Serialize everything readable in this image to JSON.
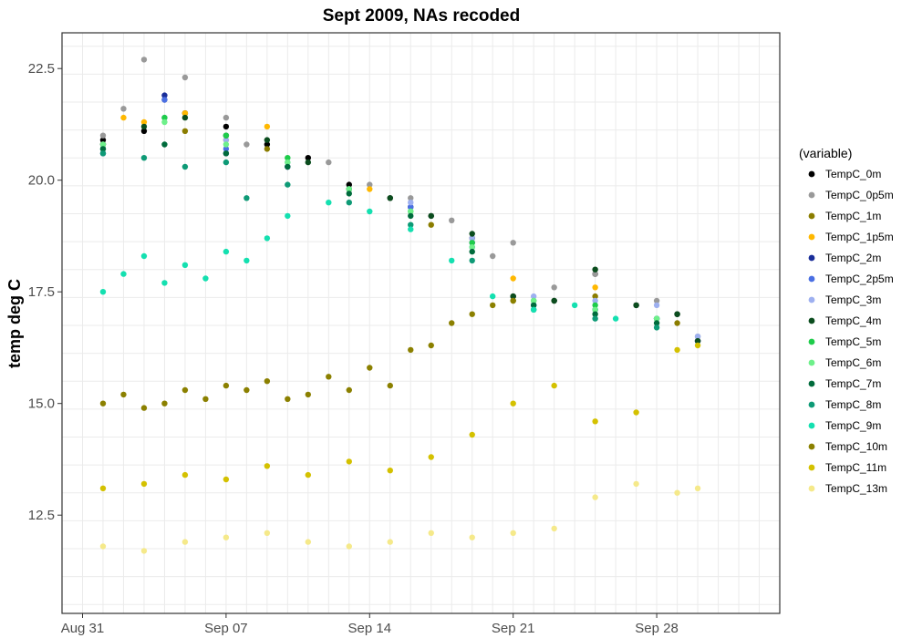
{
  "chart_data": {
    "type": "scatter",
    "title": "Sept 2009, NAs recoded",
    "xlabel": "",
    "ylabel": "temp deg C",
    "x_range": [
      "2009-08-30",
      "2009-10-04"
    ],
    "ylim": [
      10.3,
      23.3
    ],
    "x_ticks": [
      {
        "date": "2009-08-31",
        "label": "Aug 31"
      },
      {
        "date": "2009-09-07",
        "label": "Sep 07"
      },
      {
        "date": "2009-09-14",
        "label": "Sep 14"
      },
      {
        "date": "2009-09-21",
        "label": "Sep 21"
      },
      {
        "date": "2009-09-28",
        "label": "Sep 28"
      }
    ],
    "y_ticks": [
      {
        "value": 12.5,
        "label": "12.5"
      },
      {
        "value": 15.0,
        "label": "15.0"
      },
      {
        "value": 17.5,
        "label": "17.5"
      },
      {
        "value": 20.0,
        "label": "20.0"
      },
      {
        "value": 22.5,
        "label": "22.5"
      }
    ],
    "grid": true,
    "legend": {
      "title": "(variable)",
      "position": "right"
    },
    "series": [
      {
        "name": "TempC_0m",
        "color": "#000000",
        "x": [
          "2009-09-01",
          "2009-09-03",
          "2009-09-05",
          "2009-09-07",
          "2009-09-09",
          "2009-09-11",
          "2009-09-13",
          "2009-09-15",
          "2009-09-17",
          "2009-09-19",
          "2009-09-21",
          "2009-09-23",
          "2009-09-25",
          "2009-09-27",
          "2009-09-29",
          "2009-09-30"
        ],
        "y": [
          20.9,
          21.1,
          21.5,
          21.2,
          20.8,
          20.5,
          19.9,
          19.6,
          19.2,
          18.7,
          17.4,
          17.3,
          17.9,
          17.2,
          17.0,
          16.4
        ]
      },
      {
        "name": "TempC_0p5m",
        "color": "#999999",
        "x": [
          "2009-09-01",
          "2009-09-02",
          "2009-09-03",
          "2009-09-04",
          "2009-09-05",
          "2009-09-07",
          "2009-09-08",
          "2009-09-10",
          "2009-09-12",
          "2009-09-14",
          "2009-09-16",
          "2009-09-18",
          "2009-09-20",
          "2009-09-21",
          "2009-09-23",
          "2009-09-25",
          "2009-09-28",
          "2009-09-30"
        ],
        "y": [
          21.0,
          21.6,
          22.7,
          21.8,
          22.3,
          21.4,
          20.8,
          20.3,
          20.4,
          19.9,
          19.6,
          19.1,
          18.3,
          18.6,
          17.6,
          17.9,
          17.3,
          16.5
        ]
      },
      {
        "name": "TempC_1m",
        "color": "#8B7D00",
        "x": [
          "2009-09-01",
          "2009-09-05",
          "2009-09-09",
          "2009-09-13",
          "2009-09-17",
          "2009-09-21",
          "2009-09-25",
          "2009-09-29"
        ],
        "y": [
          20.8,
          21.1,
          20.7,
          19.8,
          19.0,
          17.3,
          17.4,
          16.8
        ]
      },
      {
        "name": "TempC_1p5m",
        "color": "#FFB800",
        "x": [
          "2009-09-02",
          "2009-09-03",
          "2009-09-05",
          "2009-09-07",
          "2009-09-09",
          "2009-09-14",
          "2009-09-21",
          "2009-09-25"
        ],
        "y": [
          21.4,
          21.3,
          21.5,
          20.9,
          21.2,
          19.8,
          17.8,
          17.6
        ]
      },
      {
        "name": "TempC_2m",
        "color": "#1A2E99",
        "x": [
          "2009-09-01",
          "2009-09-04",
          "2009-09-07",
          "2009-09-10",
          "2009-09-13",
          "2009-09-16",
          "2009-09-19",
          "2009-09-22",
          "2009-09-25",
          "2009-09-28",
          "2009-09-30"
        ],
        "y": [
          20.6,
          21.9,
          20.6,
          20.3,
          19.8,
          19.4,
          18.6,
          17.2,
          17.1,
          16.9,
          16.4
        ]
      },
      {
        "name": "TempC_2p5m",
        "color": "#4A6FE3",
        "x": [
          "2009-09-01",
          "2009-09-04",
          "2009-09-07",
          "2009-09-10",
          "2009-09-13",
          "2009-09-16",
          "2009-09-19",
          "2009-09-22",
          "2009-09-25",
          "2009-09-28",
          "2009-09-30"
        ],
        "y": [
          20.7,
          21.8,
          20.7,
          20.3,
          19.8,
          19.4,
          18.5,
          17.2,
          17.1,
          16.9,
          16.4
        ]
      },
      {
        "name": "TempC_3m",
        "color": "#9EB0F0",
        "x": [
          "2009-09-01",
          "2009-09-04",
          "2009-09-07",
          "2009-09-10",
          "2009-09-13",
          "2009-09-16",
          "2009-09-19",
          "2009-09-22",
          "2009-09-25",
          "2009-09-28",
          "2009-09-30"
        ],
        "y": [
          20.8,
          21.4,
          20.9,
          20.4,
          19.8,
          19.5,
          18.7,
          17.4,
          17.3,
          17.2,
          16.5
        ]
      },
      {
        "name": "TempC_4m",
        "color": "#0B4D1E",
        "x": [
          "2009-09-01",
          "2009-09-03",
          "2009-09-05",
          "2009-09-07",
          "2009-09-09",
          "2009-09-11",
          "2009-09-13",
          "2009-09-15",
          "2009-09-17",
          "2009-09-19",
          "2009-09-21",
          "2009-09-23",
          "2009-09-25",
          "2009-09-27",
          "2009-09-29",
          "2009-09-30"
        ],
        "y": [
          20.8,
          21.2,
          21.4,
          21.0,
          20.9,
          20.4,
          19.8,
          19.6,
          19.2,
          18.8,
          17.4,
          17.3,
          18.0,
          17.2,
          17.0,
          16.4
        ]
      },
      {
        "name": "TempC_5m",
        "color": "#1ECC4A",
        "x": [
          "2009-09-01",
          "2009-09-04",
          "2009-09-07",
          "2009-09-10",
          "2009-09-13",
          "2009-09-16",
          "2009-09-19",
          "2009-09-22",
          "2009-09-25",
          "2009-09-28"
        ],
        "y": [
          20.7,
          21.4,
          21.0,
          20.5,
          19.8,
          19.3,
          18.6,
          17.3,
          17.2,
          16.9
        ]
      },
      {
        "name": "TempC_6m",
        "color": "#6EF08A",
        "x": [
          "2009-09-01",
          "2009-09-04",
          "2009-09-07",
          "2009-09-10",
          "2009-09-13",
          "2009-09-16",
          "2009-09-19",
          "2009-09-22",
          "2009-09-25",
          "2009-09-28"
        ],
        "y": [
          20.8,
          21.3,
          20.8,
          20.4,
          19.8,
          19.3,
          18.5,
          17.3,
          17.1,
          16.9
        ]
      },
      {
        "name": "TempC_7m",
        "color": "#006B3C",
        "x": [
          "2009-09-01",
          "2009-09-04",
          "2009-09-07",
          "2009-09-10",
          "2009-09-13",
          "2009-09-16",
          "2009-09-19",
          "2009-09-22",
          "2009-09-25",
          "2009-09-28"
        ],
        "y": [
          20.7,
          20.8,
          20.6,
          20.3,
          19.7,
          19.2,
          18.4,
          17.2,
          17.0,
          16.8
        ]
      },
      {
        "name": "TempC_8m",
        "color": "#0E9A76",
        "x": [
          "2009-09-01",
          "2009-09-03",
          "2009-09-05",
          "2009-09-07",
          "2009-09-08",
          "2009-09-10",
          "2009-09-13",
          "2009-09-16",
          "2009-09-19",
          "2009-09-22",
          "2009-09-25",
          "2009-09-28"
        ],
        "y": [
          20.6,
          20.5,
          20.3,
          20.4,
          19.6,
          19.9,
          19.5,
          19.0,
          18.2,
          17.1,
          16.9,
          16.7
        ]
      },
      {
        "name": "TempC_9m",
        "color": "#14E0B0",
        "x": [
          "2009-09-01",
          "2009-09-02",
          "2009-09-03",
          "2009-09-04",
          "2009-09-05",
          "2009-09-06",
          "2009-09-07",
          "2009-09-08",
          "2009-09-09",
          "2009-09-10",
          "2009-09-12",
          "2009-09-14",
          "2009-09-16",
          "2009-09-18",
          "2009-09-20",
          "2009-09-22",
          "2009-09-24",
          "2009-09-26"
        ],
        "y": [
          17.5,
          17.9,
          18.3,
          17.7,
          18.1,
          17.8,
          18.4,
          18.2,
          18.7,
          19.2,
          19.5,
          19.3,
          18.9,
          18.2,
          17.4,
          17.1,
          17.2,
          16.9
        ]
      },
      {
        "name": "TempC_10m",
        "color": "#8B8000",
        "x": [
          "2009-09-01",
          "2009-09-02",
          "2009-09-03",
          "2009-09-04",
          "2009-09-05",
          "2009-09-06",
          "2009-09-07",
          "2009-09-08",
          "2009-09-09",
          "2009-09-10",
          "2009-09-11",
          "2009-09-12",
          "2009-09-13",
          "2009-09-14",
          "2009-09-15",
          "2009-09-16",
          "2009-09-17",
          "2009-09-18",
          "2009-09-19",
          "2009-09-20",
          "2009-09-21"
        ],
        "y": [
          15.0,
          15.2,
          14.9,
          15.0,
          15.3,
          15.1,
          15.4,
          15.3,
          15.5,
          15.1,
          15.2,
          15.6,
          15.3,
          15.8,
          15.4,
          16.2,
          16.3,
          16.8,
          17.0,
          17.2,
          17.3
        ]
      },
      {
        "name": "TempC_11m",
        "color": "#D4C100",
        "x": [
          "2009-09-01",
          "2009-09-03",
          "2009-09-05",
          "2009-09-07",
          "2009-09-09",
          "2009-09-11",
          "2009-09-13",
          "2009-09-15",
          "2009-09-17",
          "2009-09-19",
          "2009-09-21",
          "2009-09-23",
          "2009-09-25",
          "2009-09-27",
          "2009-09-29",
          "2009-09-30"
        ],
        "y": [
          13.1,
          13.2,
          13.4,
          13.3,
          13.6,
          13.4,
          13.7,
          13.5,
          13.8,
          14.3,
          15.0,
          15.4,
          14.6,
          14.8,
          16.2,
          16.3
        ]
      },
      {
        "name": "TempC_13m",
        "color": "#F5E98A",
        "x": [
          "2009-09-01",
          "2009-09-03",
          "2009-09-05",
          "2009-09-07",
          "2009-09-09",
          "2009-09-11",
          "2009-09-13",
          "2009-09-15",
          "2009-09-17",
          "2009-09-19",
          "2009-09-21",
          "2009-09-23",
          "2009-09-25",
          "2009-09-27",
          "2009-09-29",
          "2009-09-30"
        ],
        "y": [
          11.8,
          11.7,
          11.9,
          12.0,
          12.1,
          11.9,
          11.8,
          11.9,
          12.1,
          12.0,
          12.1,
          12.2,
          12.9,
          13.2,
          13.0,
          13.1
        ]
      }
    ]
  }
}
